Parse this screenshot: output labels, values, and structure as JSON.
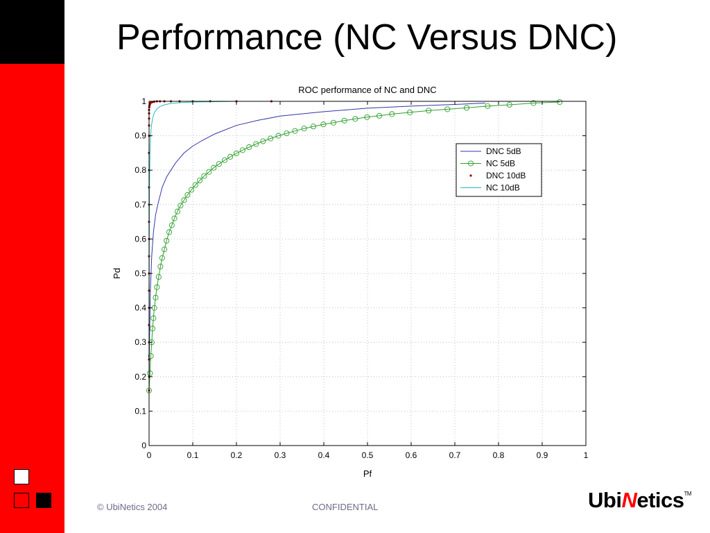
{
  "slide": {
    "title": "Performance (NC Versus DNC)",
    "copyright": "© UbiNetics 2004",
    "confidential": "CONFIDENTIAL",
    "logo_prefix": "Ubi",
    "logo_accent": "N",
    "logo_suffix": "etics",
    "logo_tm": "TM",
    "colors": {
      "sidebar": "#ff0000",
      "corner": "#000000",
      "footer_text": "#6b6b8a"
    }
  },
  "chart_data": {
    "type": "line",
    "title": "ROC performance of NC and DNC",
    "xlabel": "Pf",
    "ylabel": "Pd",
    "xlim": [
      0,
      1
    ],
    "ylim": [
      0,
      1
    ],
    "xticks": [
      0,
      0.1,
      0.2,
      0.3,
      0.4,
      0.5,
      0.6,
      0.7,
      0.8,
      0.9,
      1
    ],
    "xtick_labels": [
      "0",
      "0.1",
      "0.2",
      "0.3",
      "0.4",
      "0.5",
      "0.6",
      "0.7",
      "0.8",
      "0.9",
      "1"
    ],
    "yticks": [
      0,
      0.1,
      0.2,
      0.3,
      0.4,
      0.5,
      0.6,
      0.7,
      0.8,
      0.9,
      1
    ],
    "ytick_labels": [
      "0",
      "0.1",
      "0.2",
      "0.3",
      "0.4",
      "0.5",
      "0.6",
      "0.7",
      "0.8",
      "0.9",
      "1"
    ],
    "grid": true,
    "legend_position": "upper-right",
    "series": [
      {
        "name": "DNC 5dB",
        "color": "#3333aa",
        "marker": "none",
        "x": [
          0,
          0.001,
          0.003,
          0.006,
          0.01,
          0.015,
          0.02,
          0.03,
          0.04,
          0.05,
          0.06,
          0.08,
          0.1,
          0.12,
          0.15,
          0.2,
          0.25,
          0.3,
          0.4,
          0.5,
          0.6,
          0.7,
          0.77
        ],
        "y": [
          0.16,
          0.3,
          0.45,
          0.55,
          0.62,
          0.67,
          0.7,
          0.75,
          0.78,
          0.8,
          0.82,
          0.85,
          0.87,
          0.885,
          0.905,
          0.93,
          0.945,
          0.957,
          0.97,
          0.98,
          0.986,
          0.991,
          0.995
        ]
      },
      {
        "name": "NC 5dB",
        "color": "#2d9e2d",
        "marker": "circle",
        "x": [
          0,
          0.002,
          0.004,
          0.006,
          0.008,
          0.01,
          0.012,
          0.015,
          0.018,
          0.022,
          0.026,
          0.03,
          0.035,
          0.04,
          0.046,
          0.052,
          0.058,
          0.065,
          0.072,
          0.08,
          0.088,
          0.097,
          0.106,
          0.116,
          0.126,
          0.137,
          0.148,
          0.16,
          0.173,
          0.186,
          0.2,
          0.214,
          0.229,
          0.245,
          0.261,
          0.278,
          0.296,
          0.315,
          0.334,
          0.355,
          0.376,
          0.399,
          0.422,
          0.447,
          0.472,
          0.499,
          0.527,
          0.556,
          0.597,
          0.64,
          0.683,
          0.727,
          0.775,
          0.825,
          0.88,
          0.94
        ],
        "y": [
          0.16,
          0.21,
          0.26,
          0.3,
          0.34,
          0.37,
          0.4,
          0.43,
          0.46,
          0.49,
          0.52,
          0.545,
          0.57,
          0.595,
          0.62,
          0.64,
          0.66,
          0.68,
          0.697,
          0.713,
          0.728,
          0.743,
          0.757,
          0.77,
          0.783,
          0.795,
          0.807,
          0.818,
          0.829,
          0.839,
          0.849,
          0.858,
          0.867,
          0.876,
          0.884,
          0.892,
          0.9,
          0.907,
          0.914,
          0.921,
          0.927,
          0.933,
          0.938,
          0.944,
          0.949,
          0.954,
          0.958,
          0.963,
          0.968,
          0.973,
          0.977,
          0.981,
          0.986,
          0.99,
          0.995,
          0.998
        ]
      },
      {
        "name": "DNC 10dB",
        "color": "#990000",
        "marker": "dot",
        "x": [
          0,
          0,
          0,
          0,
          0,
          0,
          0,
          0,
          0,
          0,
          0,
          0,
          0,
          0,
          0,
          0,
          0,
          0,
          0,
          0,
          0.0005,
          0.001,
          0.002,
          0.003,
          0.005,
          0.008,
          0.012,
          0.018,
          0.025,
          0.035,
          0.05,
          0.07,
          0.1,
          0.14,
          0.2,
          0.28
        ],
        "y": [
          0.16,
          0.2,
          0.25,
          0.3,
          0.35,
          0.4,
          0.45,
          0.5,
          0.55,
          0.6,
          0.65,
          0.7,
          0.75,
          0.8,
          0.85,
          0.9,
          0.93,
          0.95,
          0.965,
          0.975,
          0.983,
          0.988,
          0.992,
          0.995,
          0.997,
          0.998,
          0.999,
          1,
          1,
          1,
          1,
          1,
          1,
          1,
          1,
          1
        ]
      },
      {
        "name": "NC 10dB",
        "color": "#22bbbb",
        "marker": "none",
        "x": [
          0,
          0.0005,
          0.001,
          0.002,
          0.003,
          0.005,
          0.008,
          0.012,
          0.018,
          0.025,
          0.035,
          0.05,
          0.07,
          0.1,
          0.15,
          0.2,
          0.28
        ],
        "y": [
          0.16,
          0.6,
          0.75,
          0.85,
          0.89,
          0.925,
          0.95,
          0.967,
          0.978,
          0.985,
          0.99,
          0.994,
          0.996,
          0.998,
          0.999,
          1,
          1
        ]
      }
    ]
  }
}
